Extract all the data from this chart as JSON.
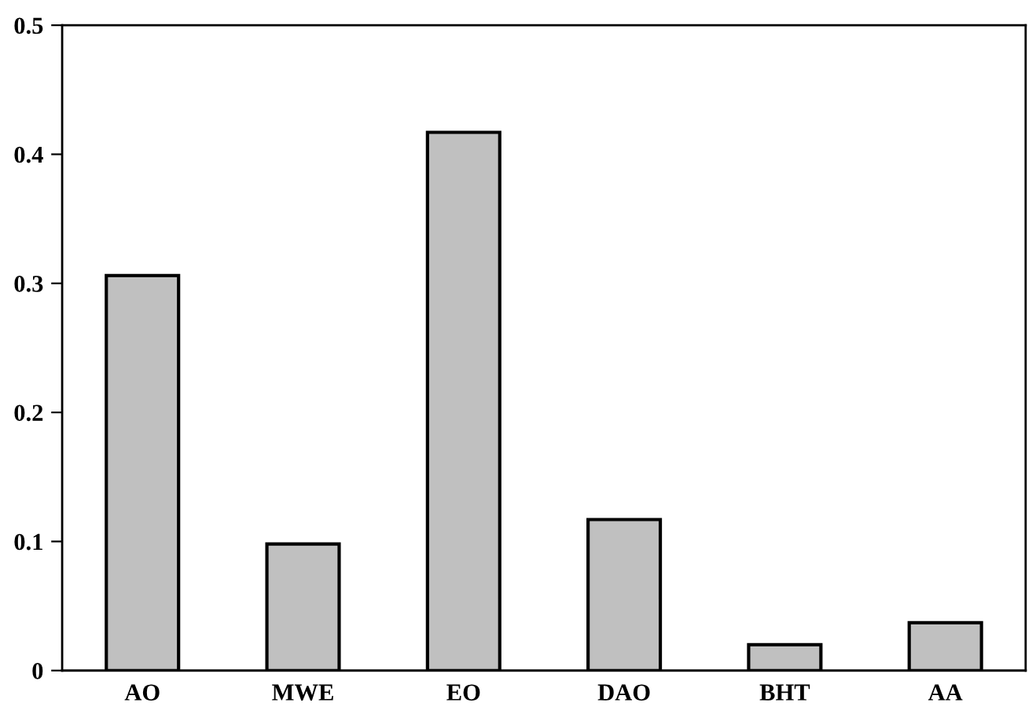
{
  "chart_data": {
    "type": "bar",
    "categories": [
      "AO",
      "MWE",
      "EO",
      "DAO",
      "BHT",
      "AA"
    ],
    "values": [
      0.306,
      0.098,
      0.417,
      0.117,
      0.02,
      0.037
    ],
    "color": "#c0c0c0",
    "ylim": [
      0,
      0.5
    ],
    "yticks": [
      {
        "value": 0,
        "label": "0"
      },
      0.1,
      0.2,
      0.3,
      0.4,
      0.5
    ],
    "grid": false
  }
}
